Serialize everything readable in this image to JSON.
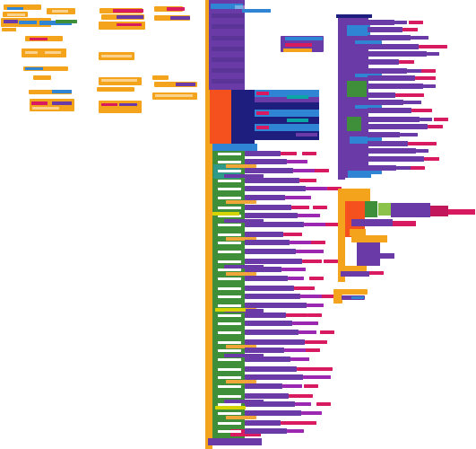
{
  "app": {
    "title": ""
  },
  "colors": {
    "event_orange": "#f4a41c",
    "control_amber": "#f1a63a",
    "procedure_purple": "#6a3aa6",
    "component_blue": "#2f84d3",
    "text_pink": "#d81b60",
    "logic_green": "#3f8f3a",
    "deep_orange": "#f4511e",
    "navy": "#1e1e7e",
    "teal": "#0aa6a6",
    "highlight_yellow": "#d6d400",
    "workspace_bg": "#ffffff"
  }
}
